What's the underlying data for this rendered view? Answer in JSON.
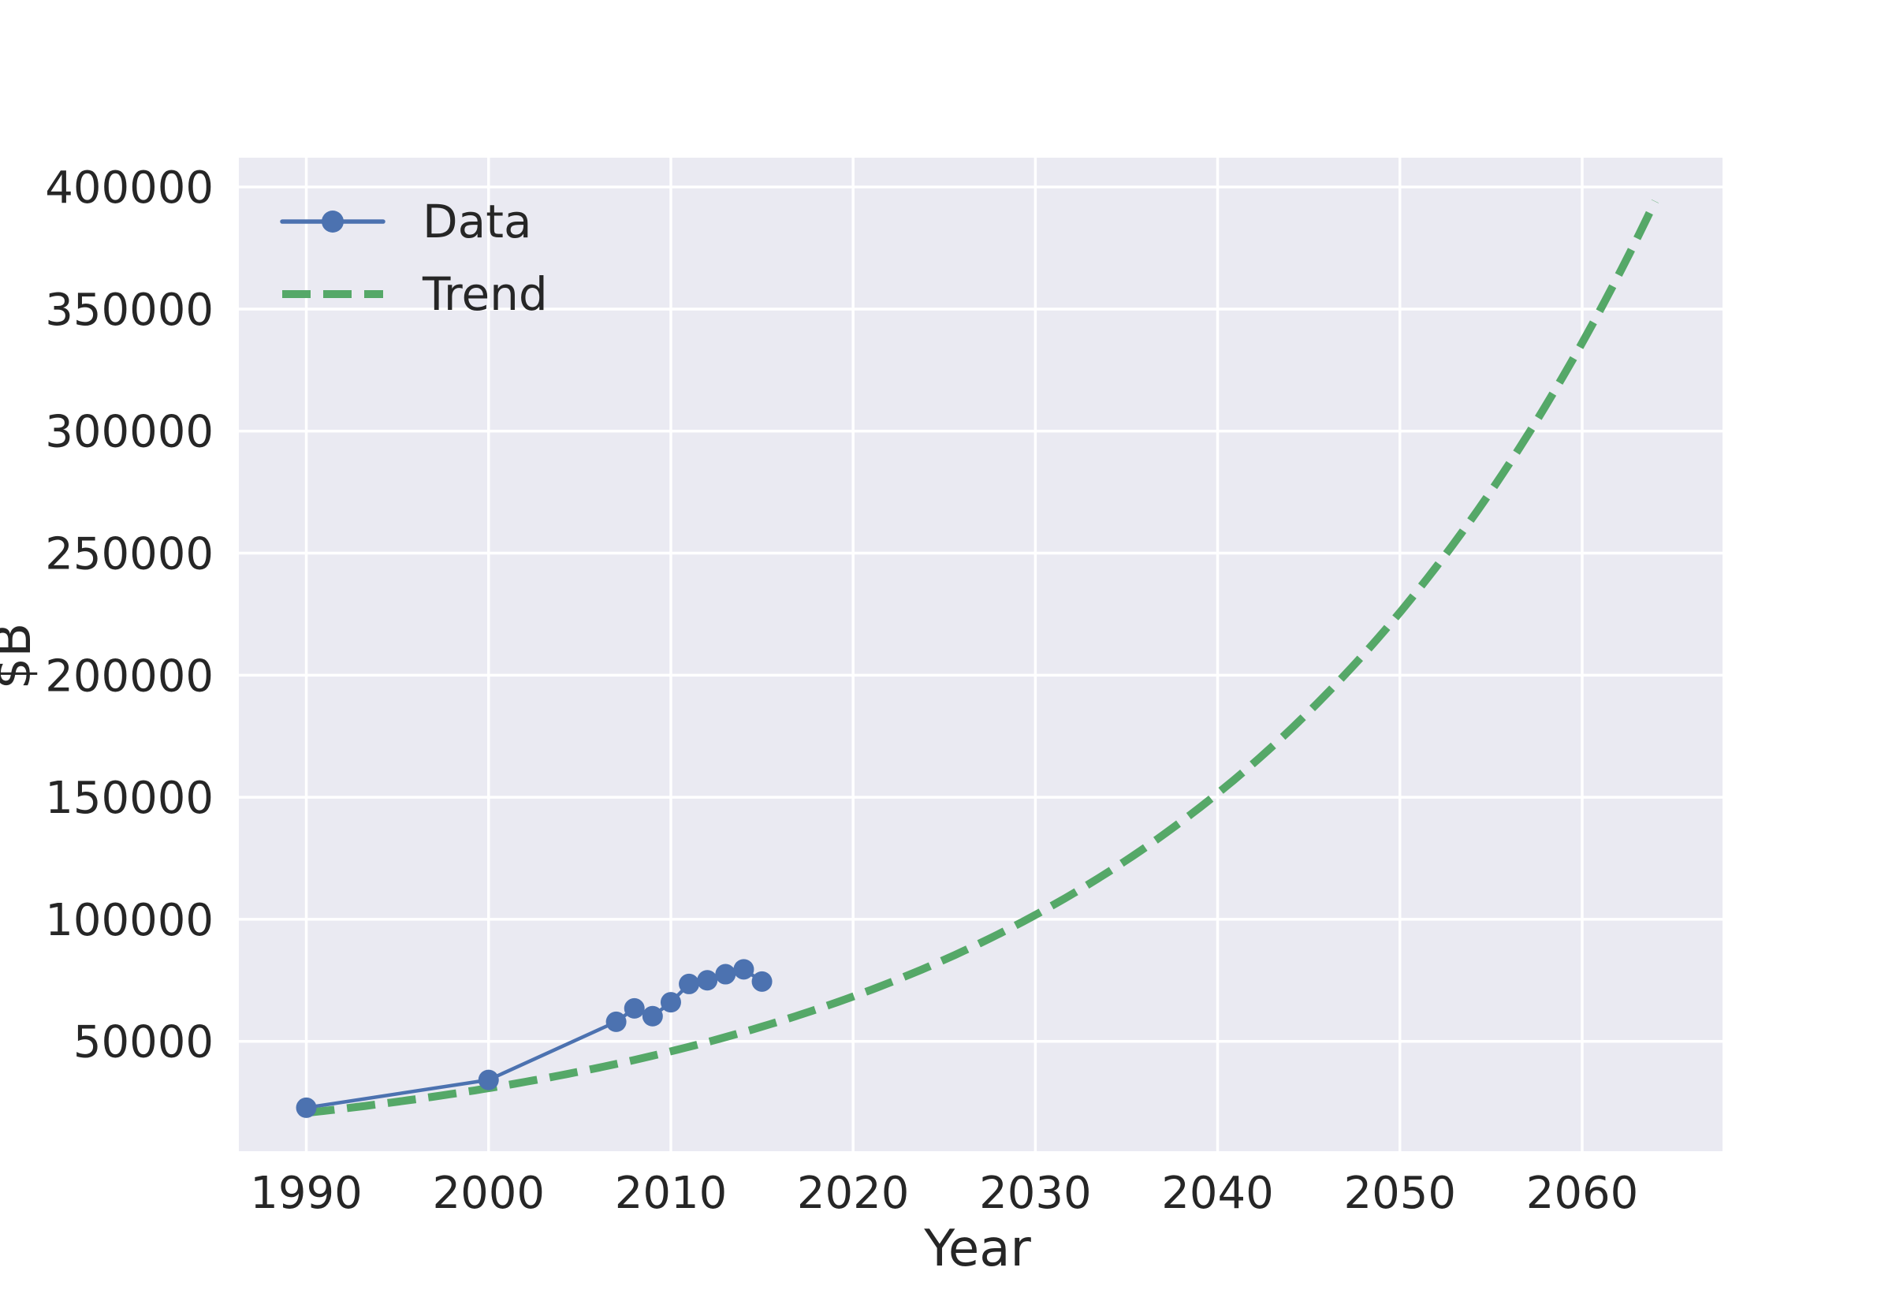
{
  "chart_data": {
    "type": "line",
    "xlabel": "Year",
    "ylabel": "$B",
    "xlim": [
      1986.3,
      2067.7
    ],
    "ylim": [
      5000,
      412000
    ],
    "xticks": [
      1990,
      2000,
      2010,
      2020,
      2030,
      2040,
      2050,
      2060
    ],
    "yticks": [
      50000,
      100000,
      150000,
      200000,
      250000,
      300000,
      350000,
      400000
    ],
    "grid": true,
    "legend_position": "upper-left",
    "colors": {
      "data": "#4c72b0",
      "trend": "#55a868",
      "background": "#eaeaf2",
      "grid": "#ffffff"
    },
    "series": [
      {
        "name": "Data",
        "style": "line-with-markers",
        "x": [
          1990,
          2000,
          2007,
          2008,
          2009,
          2010,
          2011,
          2012,
          2013,
          2014,
          2015
        ],
        "y": [
          22800,
          34200,
          58000,
          63500,
          60300,
          66000,
          73500,
          75000,
          77500,
          79500,
          74500
        ]
      },
      {
        "name": "Trend",
        "style": "dashed",
        "model": "exponential",
        "a": 20700,
        "b": 0.03982,
        "x0": 1990,
        "xrange": [
          1990,
          2064
        ]
      }
    ]
  }
}
